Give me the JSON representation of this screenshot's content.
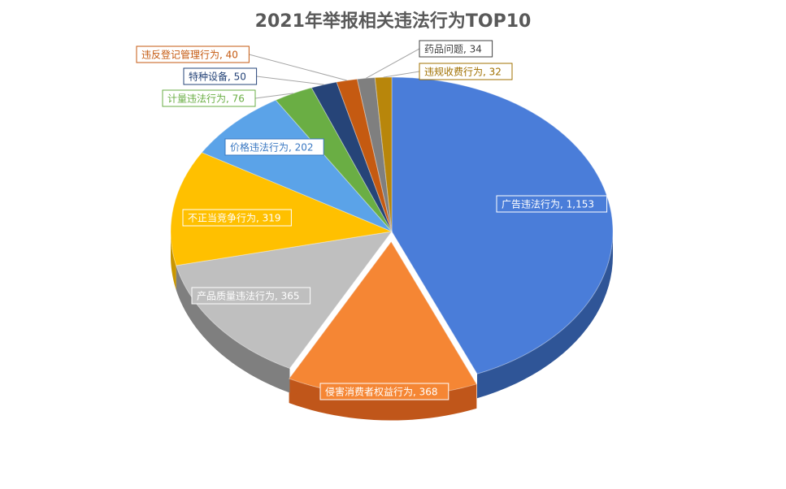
{
  "chart_data": {
    "type": "pie",
    "title": "2021年举报相关违法行为TOP10",
    "slices": [
      {
        "name": "广告违法行为",
        "value": 1153,
        "label": "广告违法行为, 1,153",
        "color": "#4A7DD9",
        "side": "#2F5597",
        "text_color": "#ffffff"
      },
      {
        "name": "侵害消费者权益行为",
        "value": 368,
        "label": "侵害消费者权益行为, 368",
        "color": "#F58634",
        "side": "#C0561A",
        "text_color": "#ffffff"
      },
      {
        "name": "产品质量违法行为",
        "value": 365,
        "label": "产品质量违法行为, 365",
        "color": "#BFBFBF",
        "side": "#7F7F7F",
        "text_color": "#ffffff"
      },
      {
        "name": "不正当竞争行为",
        "value": 319,
        "label": "不正当竞争行为, 319",
        "color": "#FFC000",
        "side": "#C99600",
        "text_color": "#ffffff"
      },
      {
        "name": "价格违法行为",
        "value": 202,
        "label": "价格违法行为, 202",
        "color": "#5BA3E8",
        "side": "#2E75B6",
        "text_color": "#3A78C2"
      },
      {
        "name": "计量违法行为",
        "value": 76,
        "label": "计量违法行为, 76",
        "color": "#6AAE44",
        "side": "#3F7F24",
        "text_color": "#6AAE44"
      },
      {
        "name": "特种设备",
        "value": 50,
        "label": "特种设备, 50",
        "color": "#264478",
        "side": "#16284A",
        "text_color": "#264478"
      },
      {
        "name": "违反登记管理行为",
        "value": 40,
        "label": "违反登记管理行为, 40",
        "color": "#C55A11",
        "side": "#843C0C",
        "text_color": "#C55A11"
      },
      {
        "name": "药品问题",
        "value": 34,
        "label": "药品问题, 34",
        "color": "#7F7F7F",
        "side": "#4D4D4D",
        "text_color": "#404040"
      },
      {
        "name": "违规收费行为",
        "value": 32,
        "label": "违规收费行为, 32",
        "color": "#B8860B",
        "side": "#7F6000",
        "text_color": "#A07000"
      }
    ]
  }
}
